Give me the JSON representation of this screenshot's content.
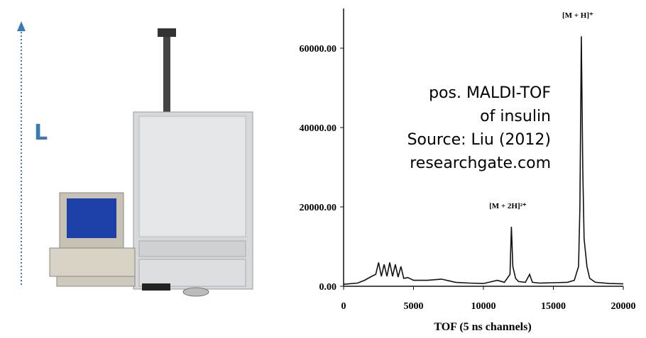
{
  "slide": {
    "side_label": "L"
  },
  "chart_data": {
    "type": "line",
    "x_label": "TOF (5 ns channels)",
    "annotations": [
      {
        "text": "[M + H]⁺",
        "x": 17000,
        "y": 63000
      },
      {
        "text": "[M + 2H]²⁺",
        "x": 12000,
        "y": 15000
      }
    ],
    "note": [
      "pos. MALDI-TOF",
      "of insulin",
      "Source: Liu (2012)",
      "researchgate.com"
    ],
    "xlim": [
      0,
      20000
    ],
    "ylim": [
      0,
      70000
    ],
    "xticks": [
      0,
      5000,
      10000,
      15000,
      20000
    ],
    "yticks": [
      {
        "value": 0,
        "label": "0.00"
      },
      {
        "value": 20000,
        "label": "20000.00"
      },
      {
        "value": 40000,
        "label": "40000.00"
      },
      {
        "value": 60000,
        "label": "60000.00"
      }
    ],
    "color": "#111111",
    "x": [
      0,
      1000,
      1500,
      2000,
      2300,
      2500,
      2700,
      2900,
      3100,
      3300,
      3500,
      3700,
      3900,
      4100,
      4300,
      4600,
      5000,
      6000,
      7000,
      8000,
      9000,
      10000,
      11000,
      11500,
      11900,
      12000,
      12100,
      12300,
      12500,
      13000,
      13300,
      13500,
      14000,
      15000,
      16000,
      16500,
      16800,
      16900,
      17000,
      17100,
      17200,
      17400,
      17600,
      18000,
      19000,
      20000
    ],
    "values": [
      500,
      800,
      1500,
      2500,
      3000,
      6000,
      2500,
      5500,
      2500,
      6000,
      2500,
      5500,
      2300,
      5000,
      2000,
      2200,
      1500,
      1500,
      1800,
      1000,
      800,
      700,
      1500,
      1000,
      3000,
      15000,
      5000,
      2000,
      1200,
      1000,
      3000,
      1000,
      800,
      900,
      1000,
      1500,
      5000,
      20000,
      63000,
      30000,
      12000,
      5000,
      2000,
      1000,
      700,
      600
    ]
  }
}
